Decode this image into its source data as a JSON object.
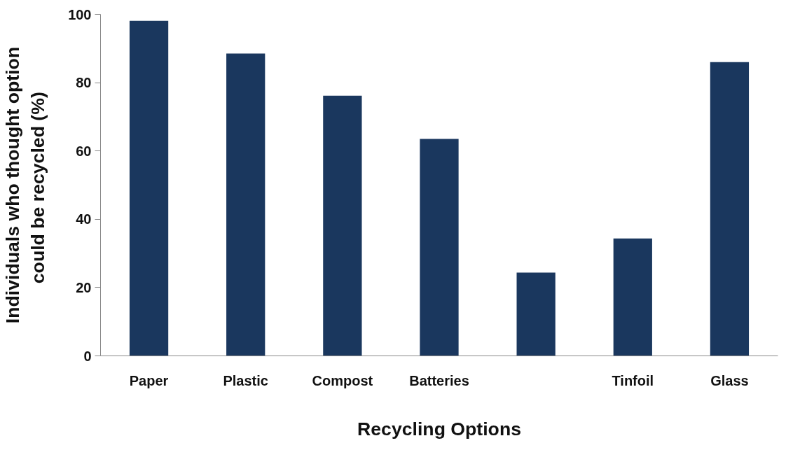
{
  "chart_data": {
    "type": "bar",
    "xlabel": "Recycling Options",
    "ylabel": "Individuals who thought option\ncould be  recycled (%)",
    "categories": [
      "Paper",
      "Plastic",
      "Compost",
      "Batteries",
      null,
      "Tinfoil",
      "Glass"
    ],
    "values": [
      98.1,
      88.5,
      76.2,
      63.5,
      24.4,
      34.4,
      86.0
    ],
    "color": "#1a375e",
    "ylim": [
      0,
      100
    ],
    "yticks": [
      0,
      20,
      40,
      60,
      80,
      100
    ],
    "grid": false
  }
}
